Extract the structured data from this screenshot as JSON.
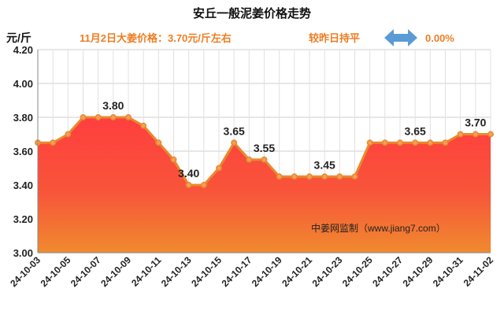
{
  "header": {
    "title": "安丘一般泥姜价格走势",
    "unit": "元/斤",
    "price_note": "11月2日大姜价格：3.70元/斤左右",
    "compare_label": "较昨日持平",
    "compare_value": "0.00%",
    "compare_icon": "double-arrow-icon",
    "accent_color": "#ef7d22",
    "arrow_color": "#5b9bd5"
  },
  "source": "中姜网监制（www.jiang7.com）",
  "chart_data": {
    "type": "area",
    "title": "安丘一般泥姜价格走势",
    "xlabel": "",
    "ylabel": "元/斤",
    "ylim": [
      3.0,
      4.2
    ],
    "yticks": [
      "3.00",
      "3.20",
      "3.40",
      "3.60",
      "3.80",
      "4.00",
      "4.20"
    ],
    "ytick_values": [
      3.0,
      3.2,
      3.4,
      3.6,
      3.8,
      4.0,
      4.2
    ],
    "grid": true,
    "x": [
      "24-10-03",
      "24-10-04",
      "24-10-05",
      "24-10-06",
      "24-10-07",
      "24-10-08",
      "24-10-09",
      "24-10-10",
      "24-10-11",
      "24-10-12",
      "24-10-13",
      "24-10-14",
      "24-10-15",
      "24-10-16",
      "24-10-17",
      "24-10-18",
      "24-10-19",
      "24-10-20",
      "24-10-21",
      "24-10-22",
      "24-10-23",
      "24-10-24",
      "24-10-25",
      "24-10-26",
      "24-10-27",
      "24-10-28",
      "24-10-29",
      "24-10-30",
      "24-10-31",
      "24-11-01",
      "24-11-02"
    ],
    "xtick_labels": [
      "24-10-03",
      "24-10-05",
      "24-10-07",
      "24-10-09",
      "24-10-11",
      "24-10-13",
      "24-10-15",
      "24-10-17",
      "24-10-19",
      "24-10-21",
      "24-10-23",
      "24-10-25",
      "24-10-27",
      "24-10-29",
      "24-10-31",
      "24-11-02"
    ],
    "series": [
      {
        "name": "安丘一般泥姜价格",
        "values": [
          3.65,
          3.65,
          3.7,
          3.8,
          3.8,
          3.8,
          3.8,
          3.75,
          3.65,
          3.55,
          3.4,
          3.4,
          3.5,
          3.65,
          3.55,
          3.55,
          3.45,
          3.45,
          3.45,
          3.45,
          3.45,
          3.45,
          3.65,
          3.65,
          3.65,
          3.65,
          3.65,
          3.65,
          3.7,
          3.7,
          3.7
        ]
      }
    ],
    "data_labels": [
      {
        "index": 5,
        "text": "3.80"
      },
      {
        "index": 10,
        "text": "3.40"
      },
      {
        "index": 13,
        "text": "3.65"
      },
      {
        "index": 15,
        "text": "3.55"
      },
      {
        "index": 19,
        "text": "3.45"
      },
      {
        "index": 25,
        "text": "3.65"
      },
      {
        "index": 29,
        "text": "3.70"
      }
    ],
    "line_color": "#e8892d",
    "fill_top_color": "#ff3e3e",
    "fill_bottom_color": "#f08a2e"
  }
}
